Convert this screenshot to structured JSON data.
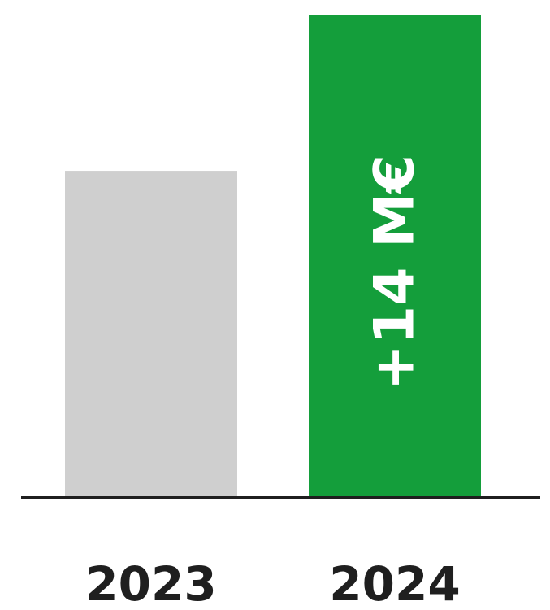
{
  "chart_data": {
    "type": "bar",
    "categories": [
      "2023",
      "2024"
    ],
    "values": [
      29.3,
      43.3
    ],
    "colors": [
      "#CFCFCF",
      "#149E3B"
    ],
    "axis_color": "#1F1F1F",
    "text_color": "#1F1F1F",
    "bar_label_color": "#FFFFFF",
    "annotations": [
      {
        "category": "2024",
        "text": "+14 M€",
        "orientation": "vertical"
      }
    ],
    "title": "",
    "xlabel": "",
    "ylabel": "",
    "ylim": [
      0,
      43.3
    ],
    "grid": false,
    "legend": "none"
  }
}
